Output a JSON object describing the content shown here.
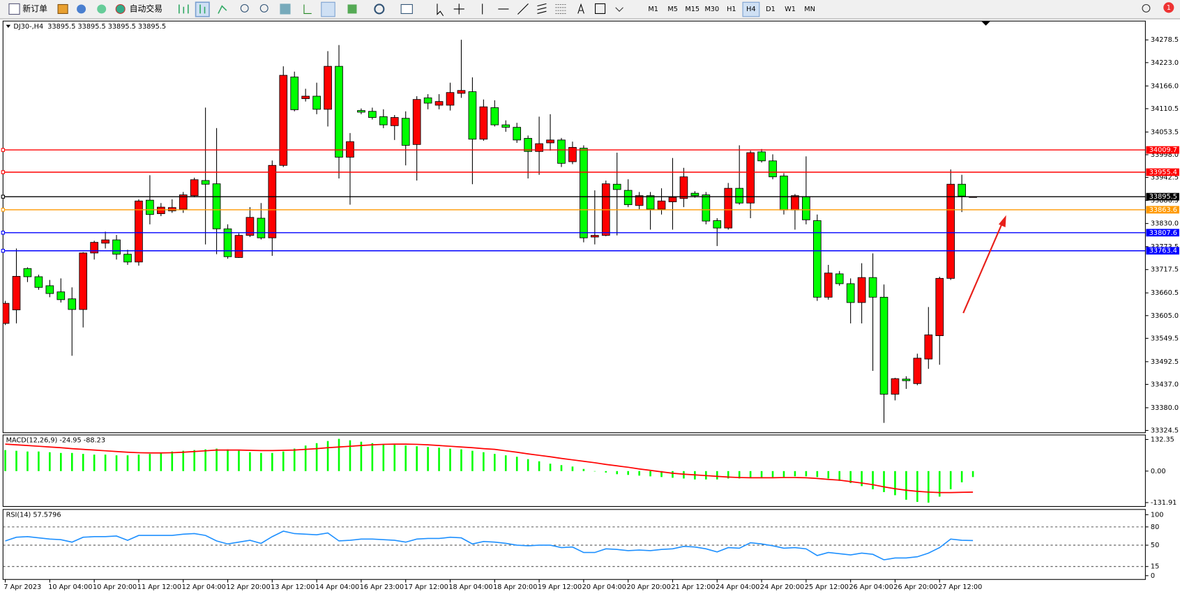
{
  "toolbar": {
    "new_order": "新订单",
    "auto_trading": "自动交易",
    "timeframes": [
      "M1",
      "M5",
      "M15",
      "M30",
      "H1",
      "H4",
      "D1",
      "W1",
      "MN"
    ],
    "active_timeframe_index": 5,
    "badge": "1"
  },
  "chart_data": [
    {
      "type": "candlestick",
      "title": "DJ30-,H4  33895.5 33895.5 33895.5 33895.5",
      "categories": [
        "7 Apr 2023",
        null,
        null,
        null,
        "10 Apr 04:00",
        null,
        null,
        null,
        "10 Apr 20:00",
        null,
        null,
        null,
        "11 Apr 12:00",
        null,
        null,
        null,
        "12 Apr 04:00",
        null,
        null,
        null,
        "12 Apr 20:00",
        null,
        null,
        null,
        "13 Apr 12:00",
        null,
        null,
        null,
        "14 Apr 04:00",
        null,
        null,
        null,
        "16 Apr 23:00",
        null,
        null,
        null,
        "17 Apr 12:00",
        null,
        null,
        null,
        "18 Apr 04:00",
        null,
        null,
        null,
        "18 Apr 20:00",
        null,
        null,
        null,
        "19 Apr 12:00",
        null,
        null,
        null,
        "20 Apr 04:00",
        null,
        null,
        null,
        "20 Apr 20:00",
        null,
        null,
        null,
        "21 Apr 12:00",
        null,
        null,
        null,
        "24 Apr 04:00",
        null,
        null,
        null,
        "24 Apr 20:00",
        null,
        null,
        null,
        "25 Apr 12:00",
        null,
        null,
        null,
        "26 Apr 04:00",
        null,
        null,
        null,
        "26 Apr 20:00",
        null,
        null,
        null,
        "27 Apr 12:00",
        null,
        null,
        null
      ],
      "open": [
        33586,
        33619,
        33720,
        33700,
        33678,
        33663,
        33646,
        33620,
        33758,
        33782,
        33790,
        33755,
        33736,
        33887,
        33854,
        33861,
        33865,
        33898,
        33935,
        33927,
        33817,
        33747,
        33801,
        33843,
        33795,
        33972,
        34188,
        34135,
        34141,
        34109,
        34214,
        33992,
        34106,
        34104,
        34091,
        34069,
        34087,
        34023,
        34137,
        34119,
        34119,
        34148,
        34152,
        34036,
        34113,
        34071,
        34065,
        34038,
        34006,
        34027,
        34034,
        33981,
        34014,
        33797,
        33801,
        33926,
        33911,
        33874,
        33898,
        33865,
        33883,
        33891,
        33904,
        33900,
        33837,
        33819,
        33916,
        33880,
        34005,
        33983,
        33946,
        33863,
        33896,
        33837,
        33650,
        33707,
        33683,
        33637,
        33698,
        33650,
        33413,
        33450,
        33439,
        33499,
        33556,
        33696,
        33926,
        33895.5
      ],
      "high": [
        33641,
        33769,
        33723,
        33705,
        33692,
        33696,
        33674,
        33760,
        33788,
        33810,
        33802,
        33766,
        33889,
        33948,
        33880,
        33889,
        33907,
        33942,
        34113,
        34063,
        33828,
        33806,
        33870,
        33880,
        33984,
        34214,
        34201,
        34159,
        34174,
        34251,
        34266,
        34051,
        34111,
        34113,
        34109,
        34095,
        34104,
        34141,
        34146,
        34146,
        34174,
        34279,
        34187,
        34133,
        34131,
        34082,
        34076,
        34045,
        34091,
        34097,
        34039,
        34030,
        34021,
        33911,
        33935,
        34003,
        33938,
        33907,
        33907,
        33916,
        33990,
        33966,
        33909,
        33907,
        33843,
        33929,
        34021,
        34008,
        34012,
        33999,
        33953,
        33902,
        33994,
        33852,
        33729,
        33714,
        33696,
        33733,
        33757,
        33681,
        33453,
        33457,
        33512,
        33626,
        33700,
        33962,
        33949,
        33895.5
      ],
      "low": [
        33582,
        33586,
        33687,
        33668,
        33650,
        33637,
        33507,
        33576,
        33742,
        33769,
        33742,
        33729,
        33727,
        33828,
        33848,
        33856,
        33856,
        33894,
        33779,
        33755,
        33744,
        33746,
        33797,
        33791,
        33751,
        33968,
        34104,
        34128,
        34097,
        34067,
        33940,
        33876,
        34097,
        34084,
        34063,
        34034,
        33972,
        33935,
        34109,
        34109,
        34106,
        34137,
        33926,
        34032,
        34067,
        34054,
        34027,
        33940,
        33949,
        34008,
        33968,
        33975,
        33784,
        33779,
        33799,
        33801,
        33870,
        33865,
        33815,
        33852,
        33815,
        33870,
        33893,
        33828,
        33775,
        33815,
        33876,
        33843,
        33979,
        33938,
        33852,
        33815,
        33828,
        33641,
        33644,
        33678,
        33586,
        33586,
        33470,
        33343,
        33398,
        33426,
        33435,
        33475,
        33485,
        33692,
        33858,
        33895.5
      ],
      "close": [
        33635,
        33701,
        33700,
        33674,
        33659,
        33644,
        33620,
        33758,
        33784,
        33790,
        33755,
        33736,
        33885,
        33852,
        33870,
        33869,
        33900,
        33937,
        33926,
        33817,
        33749,
        33801,
        33845,
        33795,
        33972,
        34192,
        34108,
        34141,
        34109,
        34214,
        33992,
        34030,
        34102,
        34089,
        34071,
        34089,
        34021,
        34133,
        34124,
        34128,
        34150,
        34155,
        34036,
        34115,
        34071,
        34065,
        34034,
        34006,
        34025,
        34034,
        33977,
        34016,
        33795,
        33801,
        33927,
        33913,
        33876,
        33898,
        33865,
        33885,
        33894,
        33944,
        33898,
        33836,
        33819,
        33916,
        33880,
        34003,
        33983,
        33944,
        33863,
        33898,
        33839,
        33650,
        33709,
        33683,
        33637,
        33698,
        33650,
        33413,
        33451,
        33446,
        33501,
        33558,
        33696,
        33926,
        33897,
        33895.5
      ],
      "up_color": "#ff0000",
      "down_color": "#00ff00",
      "levels": [
        {
          "value": 34009.7,
          "color": "#ff0000"
        },
        {
          "value": 33955.4,
          "color": "#ff0000"
        },
        {
          "value": 33895.5,
          "color": "#000000"
        },
        {
          "value": 33863.6,
          "color": "#ff9900"
        },
        {
          "value": 33807.6,
          "color": "#0000ff"
        },
        {
          "value": 33763.4,
          "color": "#0000ff"
        }
      ],
      "ylim": [
        33319,
        34324.5
      ],
      "yticks": [
        34278.5,
        {
          "value": 34223,
          "label": "34223.0"
        },
        {
          "value": 34166,
          "label": "34166.0"
        },
        34110.5,
        34053.5,
        {
          "value": 33998,
          "label": "33998.0"
        },
        33942.5,
        33886.5,
        {
          "value": 33830,
          "label": "33830.0"
        },
        33773.5,
        33717.5,
        33660.5,
        {
          "value": 33605,
          "label": "33605.0"
        },
        33549.5,
        33492.5,
        {
          "value": 33437,
          "label": "33437.0"
        },
        {
          "value": 33380,
          "label": "33380.0"
        },
        33324.5
      ]
    },
    {
      "type": "macd",
      "title": "MACD(12,26,9) -24.95 -88.23",
      "values": [
        88,
        85,
        82,
        82,
        79,
        76,
        76,
        72,
        69,
        69,
        66,
        66,
        69,
        72,
        76,
        82,
        85,
        88,
        91,
        94,
        91,
        85,
        79,
        76,
        76,
        82,
        94,
        107,
        117,
        126,
        135,
        129,
        123,
        117,
        113,
        110,
        107,
        104,
        101,
        98,
        94,
        91,
        85,
        79,
        72,
        66,
        60,
        50,
        41,
        31,
        25,
        19,
        9,
        0,
        -6,
        -13,
        -16,
        -19,
        -22,
        -25,
        -28,
        -31,
        -35,
        -35,
        -35,
        -31,
        -31,
        -28,
        -28,
        -25,
        -25,
        -22,
        -22,
        -25,
        -31,
        -41,
        -50,
        -63,
        -76,
        -88,
        -101,
        -120,
        -129,
        -132,
        -107,
        -76,
        -47,
        -24.95
      ],
      "signal": [
        113,
        110,
        107,
        104,
        101,
        98,
        94,
        91,
        88,
        85,
        82,
        79,
        77,
        76,
        76,
        77,
        79,
        82,
        85,
        88,
        88,
        88,
        87,
        86,
        86,
        87,
        88,
        91,
        94,
        98,
        101,
        104,
        107,
        110,
        112,
        113,
        113,
        112,
        110,
        107,
        104,
        101,
        98,
        94,
        91,
        85,
        79,
        72,
        66,
        60,
        53,
        47,
        41,
        35,
        28,
        22,
        16,
        9,
        3,
        -3,
        -9,
        -13,
        -16,
        -19,
        -22,
        -25,
        -27,
        -28,
        -28,
        -28,
        -27,
        -27,
        -28,
        -31,
        -35,
        -38,
        -44,
        -50,
        -57,
        -66,
        -74,
        -80,
        -85,
        -88,
        -90,
        -90,
        -89,
        -88.23
      ],
      "color": "#00ff00",
      "signal_color": "#ff0000",
      "ylim": [
        -148.1,
        151.3
      ],
      "yticks": [
        132.35,
        {
          "value": 0,
          "label": "0.00"
        },
        -131.91
      ]
    },
    {
      "type": "line",
      "title": "RSI(14) 57.5796",
      "values": [
        57,
        63,
        64,
        62,
        60,
        59,
        55,
        63,
        64,
        64,
        65,
        58,
        66,
        66,
        66,
        66,
        68,
        69,
        66,
        57,
        52,
        55,
        58,
        53,
        64,
        73,
        69,
        68,
        67,
        70,
        57,
        58,
        60,
        60,
        59,
        58,
        55,
        60,
        61,
        61,
        63,
        62,
        52,
        56,
        55,
        53,
        50,
        49,
        50,
        50,
        46,
        47,
        38,
        38,
        44,
        43,
        41,
        42,
        41,
        43,
        44,
        48,
        47,
        44,
        39,
        46,
        45,
        54,
        52,
        49,
        45,
        46,
        44,
        33,
        38,
        36,
        34,
        37,
        35,
        26,
        29,
        29,
        31,
        37,
        46,
        60,
        58,
        57.5796
      ],
      "color": "#1e90ff",
      "grid": true,
      "ylim": [
        -6.2,
        108.6
      ],
      "yticks": [
        100,
        80,
        50,
        15,
        0
      ]
    }
  ]
}
